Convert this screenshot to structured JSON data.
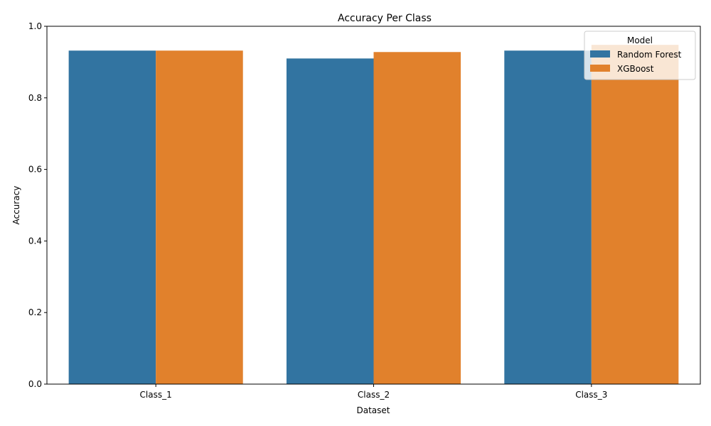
{
  "chart_data": {
    "type": "bar",
    "title": "Accuracy Per Class",
    "xlabel": "Dataset",
    "ylabel": "Accuracy",
    "categories": [
      "Class_1",
      "Class_2",
      "Class_3"
    ],
    "series": [
      {
        "name": "Random Forest",
        "values": [
          0.932,
          0.91,
          0.932
        ],
        "color": "#3274a1"
      },
      {
        "name": "XGBoost",
        "values": [
          0.932,
          0.928,
          0.948
        ],
        "color": "#e1812c"
      }
    ],
    "ylim": [
      0,
      1.0
    ],
    "yticks": [
      0.0,
      0.2,
      0.4,
      0.6,
      0.8,
      1.0
    ],
    "ytick_labels": [
      "0.0",
      "0.2",
      "0.4",
      "0.6",
      "0.8",
      "1.0"
    ],
    "grid": false,
    "legend": {
      "title": "Model",
      "placement": "top-right"
    }
  }
}
